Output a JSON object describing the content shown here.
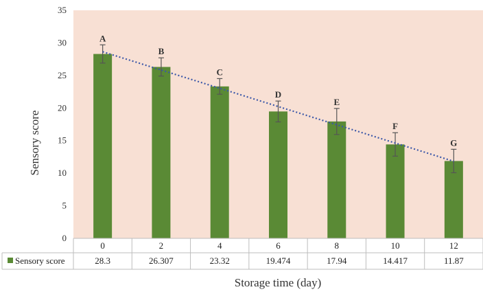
{
  "chart_data": {
    "type": "bar",
    "categories": [
      "0",
      "2",
      "4",
      "6",
      "8",
      "10",
      "12"
    ],
    "series": [
      {
        "name": "Sensory score",
        "values": [
          28.3,
          26.307,
          23.32,
          19.474,
          17.94,
          14.417,
          11.87
        ],
        "value_labels": [
          "28.3",
          "26.307",
          "23.32",
          "19.474",
          "17.94",
          "14.417",
          "11.87"
        ],
        "error": [
          1.4,
          1.4,
          1.2,
          1.6,
          2.0,
          1.8,
          1.8
        ],
        "color": "#5a8a35"
      }
    ],
    "significance_letters": [
      "A",
      "B",
      "C",
      "D",
      "E",
      "F",
      "G"
    ],
    "trendline": {
      "type": "linear",
      "style": "dotted",
      "color": "#3b57a8"
    },
    "xlabel": "Storage time (day)",
    "ylabel": "Sensory score",
    "ylim": [
      0,
      35
    ],
    "yticks": [
      0,
      5,
      10,
      15,
      20,
      25,
      30,
      35
    ],
    "grid": false,
    "legend": "data-table-left",
    "plot_background": "#f8e0d4"
  }
}
